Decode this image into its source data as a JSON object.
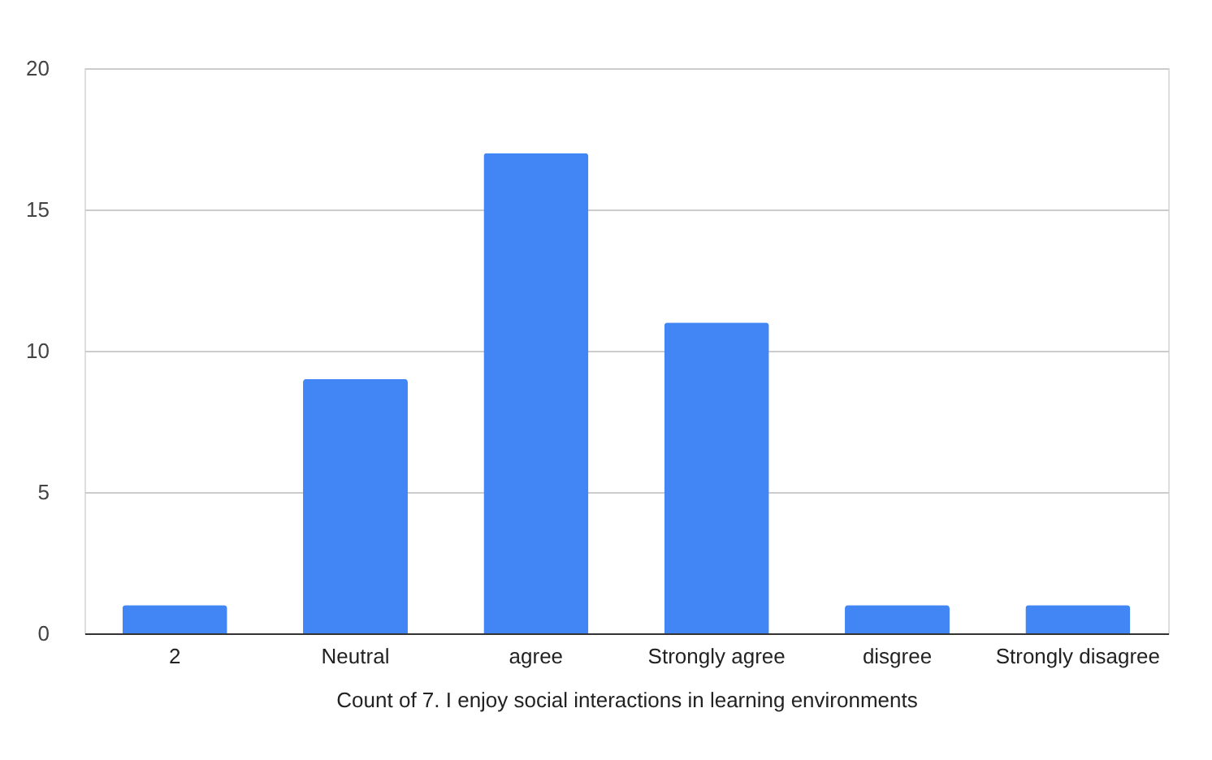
{
  "chart_data": {
    "type": "bar",
    "xlabel": "Count of 7. I enjoy social interactions in learning environments",
    "categories": [
      "2",
      "Neutral",
      "agree",
      "Strongly agree",
      "disgree",
      "Strongly disagree"
    ],
    "values": [
      1,
      9,
      17,
      11,
      1,
      1
    ],
    "color": "#4285f4",
    "ylim": [
      0,
      20
    ],
    "yticks": [
      0,
      5,
      10,
      15,
      20
    ],
    "grid": "y"
  }
}
